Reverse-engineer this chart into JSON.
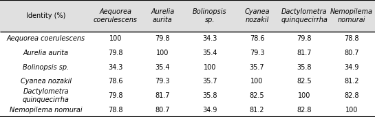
{
  "header_col": "Identity (%)",
  "col_headers": [
    "Aequorea\ncoerulescens",
    "Aurelia\naurita",
    "Bolinopsis\nsp.",
    "Cyanea\nnozakil",
    "Dactylometra\nquinquecirrha",
    "Nemopilema\nnomurai"
  ],
  "row_headers": [
    "Aequorea coerulescens",
    "Aurelia aurita",
    "Bolinopsis sp.",
    "Cyanea nozakil",
    "Dactylometra\nquinquecirrha",
    "Nemopilema nomurai"
  ],
  "data": [
    [
      100,
      79.8,
      34.3,
      78.6,
      79.8,
      78.8
    ],
    [
      79.8,
      100,
      35.4,
      79.3,
      81.7,
      80.7
    ],
    [
      34.3,
      35.4,
      100,
      35.7,
      35.8,
      34.9
    ],
    [
      78.6,
      79.3,
      35.7,
      100,
      82.5,
      81.2
    ],
    [
      79.8,
      81.7,
      35.8,
      82.5,
      100,
      82.8
    ],
    [
      78.8,
      80.7,
      34.9,
      81.2,
      82.8,
      100
    ]
  ],
  "bg_color": "#ffffff",
  "header_bg": "#e0e0e0",
  "line_color": "#000000",
  "text_color": "#000000",
  "font_size": 7.0,
  "header_font_size": 7.0
}
